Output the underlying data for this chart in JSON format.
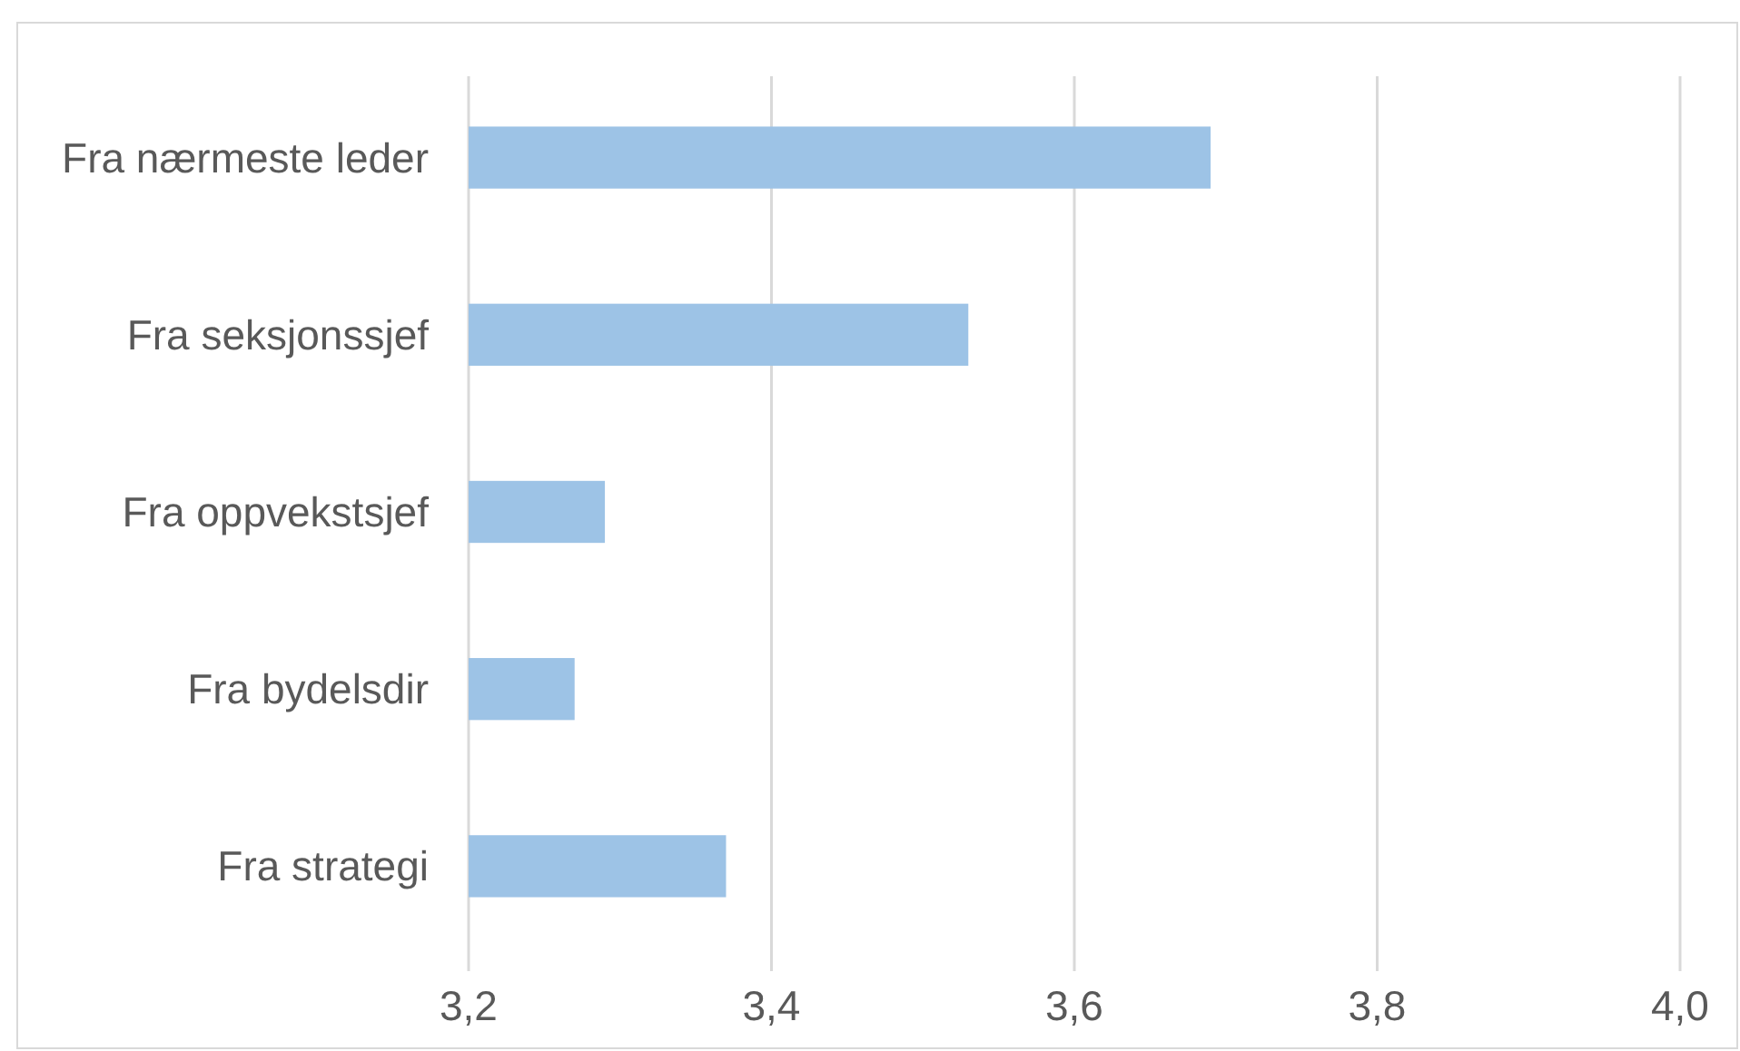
{
  "chart_data": {
    "type": "bar",
    "orientation": "horizontal",
    "categories": [
      "Fra nærmeste leder",
      "Fra seksjonssjef",
      "Fra oppvekstsjef",
      "Fra bydelsdir",
      "Fra strategi"
    ],
    "values": [
      3.69,
      3.53,
      3.29,
      3.27,
      3.37
    ],
    "color": "#9dc3e6",
    "xlim": [
      3.2,
      4.0
    ],
    "xticks": [
      {
        "value": 3.2,
        "label": "3,2"
      },
      {
        "value": 3.4,
        "label": "3,4"
      },
      {
        "value": 3.6,
        "label": "3,6"
      },
      {
        "value": 3.8,
        "label": "3,8"
      },
      {
        "value": 4.0,
        "label": "4,0"
      }
    ],
    "grid": "x"
  }
}
